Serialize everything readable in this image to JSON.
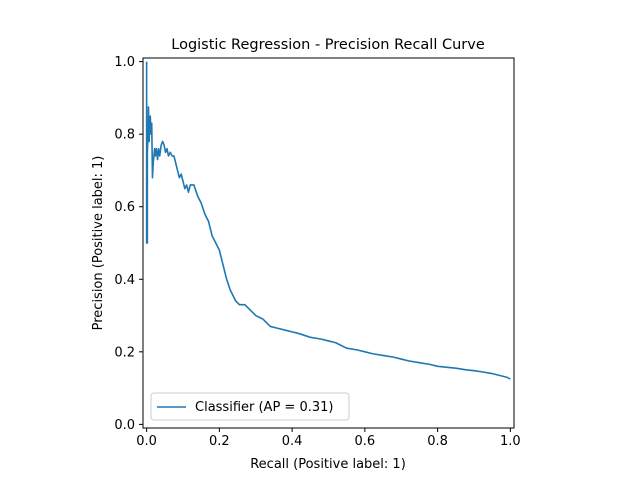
{
  "chart_data": {
    "type": "line",
    "title": "Logistic Regression - Precision Recall Curve",
    "xlabel": "Recall (Positive label: 1)",
    "ylabel": "Precision (Positive label: 1)",
    "xlim": [
      -0.01,
      1.01
    ],
    "ylim": [
      -0.01,
      1.01
    ],
    "xticks": [
      0.0,
      0.2,
      0.4,
      0.6,
      0.8,
      1.0
    ],
    "xtick_labels": [
      "0.0",
      "0.2",
      "0.4",
      "0.6",
      "0.8",
      "1.0"
    ],
    "yticks": [
      0.0,
      0.2,
      0.4,
      0.6,
      0.8,
      1.0
    ],
    "ytick_labels": [
      "0.0",
      "0.2",
      "0.4",
      "0.6",
      "0.8",
      "1.0"
    ],
    "grid": false,
    "legend": {
      "position": "lower-left",
      "entries": [
        "Classifier (AP = 0.31)"
      ]
    },
    "series": [
      {
        "name": "Classifier (AP = 0.31)",
        "color": "#1f77b4",
        "x": [
          0.0,
          0.0,
          0.002,
          0.002,
          0.004,
          0.005,
          0.007,
          0.008,
          0.009,
          0.01,
          0.012,
          0.014,
          0.016,
          0.018,
          0.02,
          0.022,
          0.024,
          0.027,
          0.03,
          0.033,
          0.036,
          0.04,
          0.044,
          0.048,
          0.052,
          0.056,
          0.06,
          0.065,
          0.07,
          0.075,
          0.08,
          0.085,
          0.09,
          0.095,
          0.1,
          0.105,
          0.11,
          0.115,
          0.12,
          0.13,
          0.14,
          0.15,
          0.16,
          0.17,
          0.18,
          0.19,
          0.2,
          0.205,
          0.21,
          0.215,
          0.22,
          0.23,
          0.24,
          0.245,
          0.25,
          0.255,
          0.26,
          0.27,
          0.28,
          0.29,
          0.3,
          0.31,
          0.32,
          0.33,
          0.34,
          0.36,
          0.38,
          0.4,
          0.42,
          0.45,
          0.48,
          0.5,
          0.52,
          0.55,
          0.58,
          0.6,
          0.62,
          0.65,
          0.68,
          0.7,
          0.72,
          0.75,
          0.78,
          0.8,
          0.82,
          0.85,
          0.88,
          0.9,
          0.92,
          0.95,
          0.97,
          0.99,
          1.0
        ],
        "y": [
          1.0,
          0.5,
          0.5,
          0.75,
          0.8,
          0.875,
          0.78,
          0.84,
          0.82,
          0.85,
          0.8,
          0.83,
          0.68,
          0.72,
          0.74,
          0.76,
          0.74,
          0.76,
          0.73,
          0.76,
          0.74,
          0.77,
          0.78,
          0.77,
          0.75,
          0.76,
          0.74,
          0.75,
          0.74,
          0.74,
          0.72,
          0.7,
          0.68,
          0.69,
          0.67,
          0.65,
          0.66,
          0.64,
          0.66,
          0.66,
          0.63,
          0.61,
          0.58,
          0.56,
          0.52,
          0.5,
          0.48,
          0.46,
          0.44,
          0.42,
          0.4,
          0.37,
          0.35,
          0.34,
          0.335,
          0.33,
          0.33,
          0.33,
          0.32,
          0.31,
          0.3,
          0.295,
          0.29,
          0.28,
          0.27,
          0.265,
          0.26,
          0.255,
          0.25,
          0.24,
          0.235,
          0.23,
          0.225,
          0.21,
          0.205,
          0.2,
          0.195,
          0.19,
          0.185,
          0.18,
          0.175,
          0.17,
          0.165,
          0.16,
          0.158,
          0.155,
          0.15,
          0.148,
          0.145,
          0.14,
          0.135,
          0.13,
          0.125
        ]
      }
    ]
  }
}
